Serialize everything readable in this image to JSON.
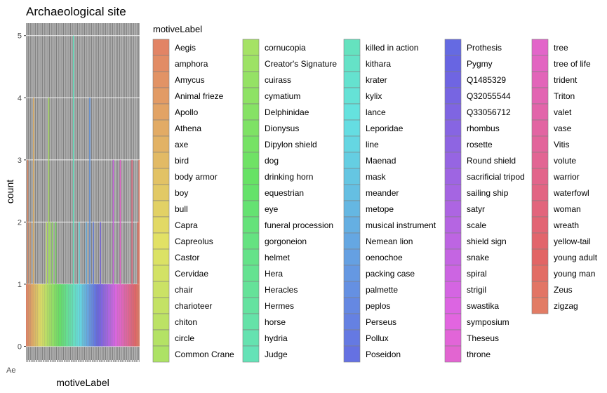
{
  "chart_data": {
    "type": "bar",
    "title": "Archaeological site",
    "xlabel": "motiveLabel",
    "ylabel": "count",
    "ylim": [
      0,
      5.2
    ],
    "y_ticks": [
      0,
      1,
      2,
      3,
      4,
      5
    ],
    "grid": true,
    "panel_background": "#7f7f7f",
    "legend": {
      "title": "motiveLabel",
      "placement": "right",
      "columns": 5
    },
    "categories": [
      "Aegis",
      "amphora",
      "Amycus",
      "Animal frieze",
      "Apollo",
      "Athena",
      "axe",
      "bird",
      "body armor",
      "boy",
      "bull",
      "Capra",
      "Capreolus",
      "Castor",
      "Cervidae",
      "chair",
      "charioteer",
      "chiton",
      "circle",
      "Common Crane",
      "cornucopia",
      "Creator's Signature",
      "cuirass",
      "cymatium",
      "Delphinidae",
      "Dionysus",
      "Dipylon shield",
      "dog",
      "drinking horn",
      "equestrian",
      "eye",
      "funeral procession",
      "gorgoneion",
      "helmet",
      "Hera",
      "Heracles",
      "Hermes",
      "horse",
      "hydria",
      "Judge",
      "killed in action",
      "kithara",
      "krater",
      "kylix",
      "lance",
      "Leporidae",
      "line",
      "Maenad",
      "mask",
      "meander",
      "metope",
      "musical instrument",
      "Nemean lion",
      "oenochoe",
      "packing case",
      "palmette",
      "peplos",
      "Perseus",
      "Pollux",
      "Poseidon",
      "Prothesis",
      "Pygmy",
      "Q1485329",
      "Q32055544",
      "Q33056712",
      "rhombus",
      "rosette",
      "Round shield",
      "sacrificial tripod",
      "sailing ship",
      "satyr",
      "scale",
      "shield sign",
      "snake",
      "spiral",
      "strigil",
      "swastika",
      "symposium",
      "Theseus",
      "throne",
      "tree",
      "tree of life",
      "trident",
      "Triton",
      "valet",
      "vase",
      "Vitis",
      "volute",
      "warrior",
      "waterfowl",
      "woman",
      "wreath",
      "yellow-tail",
      "young adult",
      "young man",
      "Zeus",
      "zigzag"
    ],
    "values": [
      1,
      3,
      1,
      2,
      1,
      1,
      4,
      1,
      1,
      1,
      1,
      1,
      1,
      1,
      1,
      1,
      1,
      2,
      1,
      4,
      2,
      1,
      2,
      1,
      1,
      2,
      1,
      1,
      1,
      1,
      1,
      1,
      1,
      1,
      1,
      1,
      1,
      1,
      1,
      1,
      5,
      1,
      1,
      1,
      1,
      2,
      1,
      1,
      1,
      1,
      1,
      2,
      1,
      1,
      4,
      1,
      1,
      2,
      1,
      1,
      1,
      1,
      1,
      2,
      1,
      1,
      1,
      1,
      1,
      1,
      1,
      1,
      1,
      1,
      3,
      1,
      1,
      1,
      1,
      1,
      3,
      1,
      1,
      1,
      1,
      1,
      1,
      1,
      1,
      1,
      3,
      1,
      1,
      1,
      1,
      2,
      3
    ],
    "x_tick_labels_visible": "Ae"
  }
}
